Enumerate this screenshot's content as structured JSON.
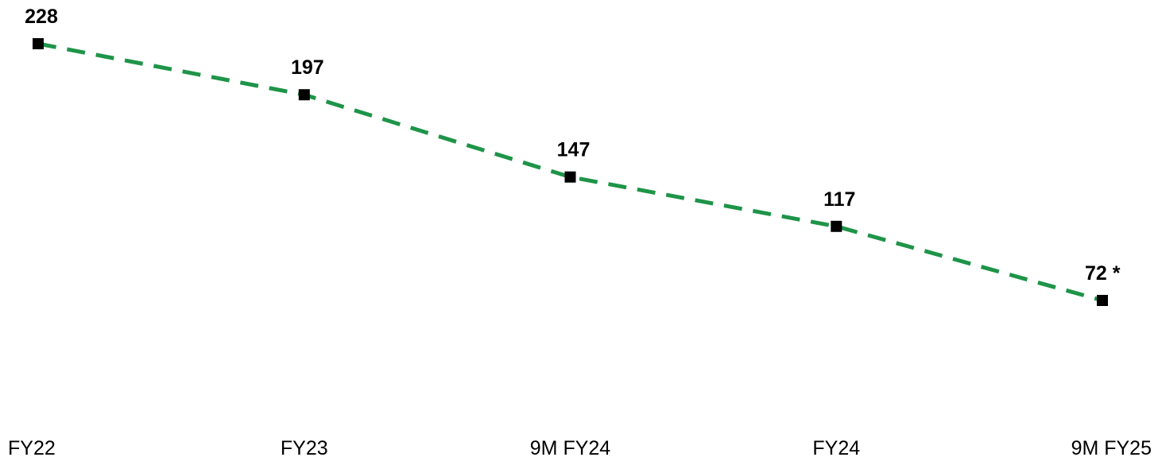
{
  "chart_data": {
    "type": "line",
    "categories": [
      "FY22",
      "FY23",
      "9M FY24",
      "FY24",
      "9M FY25"
    ],
    "series": [
      {
        "values": [
          228,
          197,
          147,
          117,
          72
        ],
        "data_labels": [
          "228",
          "197",
          "147",
          "117",
          "72 *"
        ],
        "color": "#1e9448",
        "line_style": "dashed",
        "marker": "square",
        "marker_color": "#000000"
      }
    ],
    "title": "",
    "xlabel": "",
    "ylabel": "",
    "grid": false,
    "legend": "none",
    "ylim": [
      0,
      240
    ]
  }
}
